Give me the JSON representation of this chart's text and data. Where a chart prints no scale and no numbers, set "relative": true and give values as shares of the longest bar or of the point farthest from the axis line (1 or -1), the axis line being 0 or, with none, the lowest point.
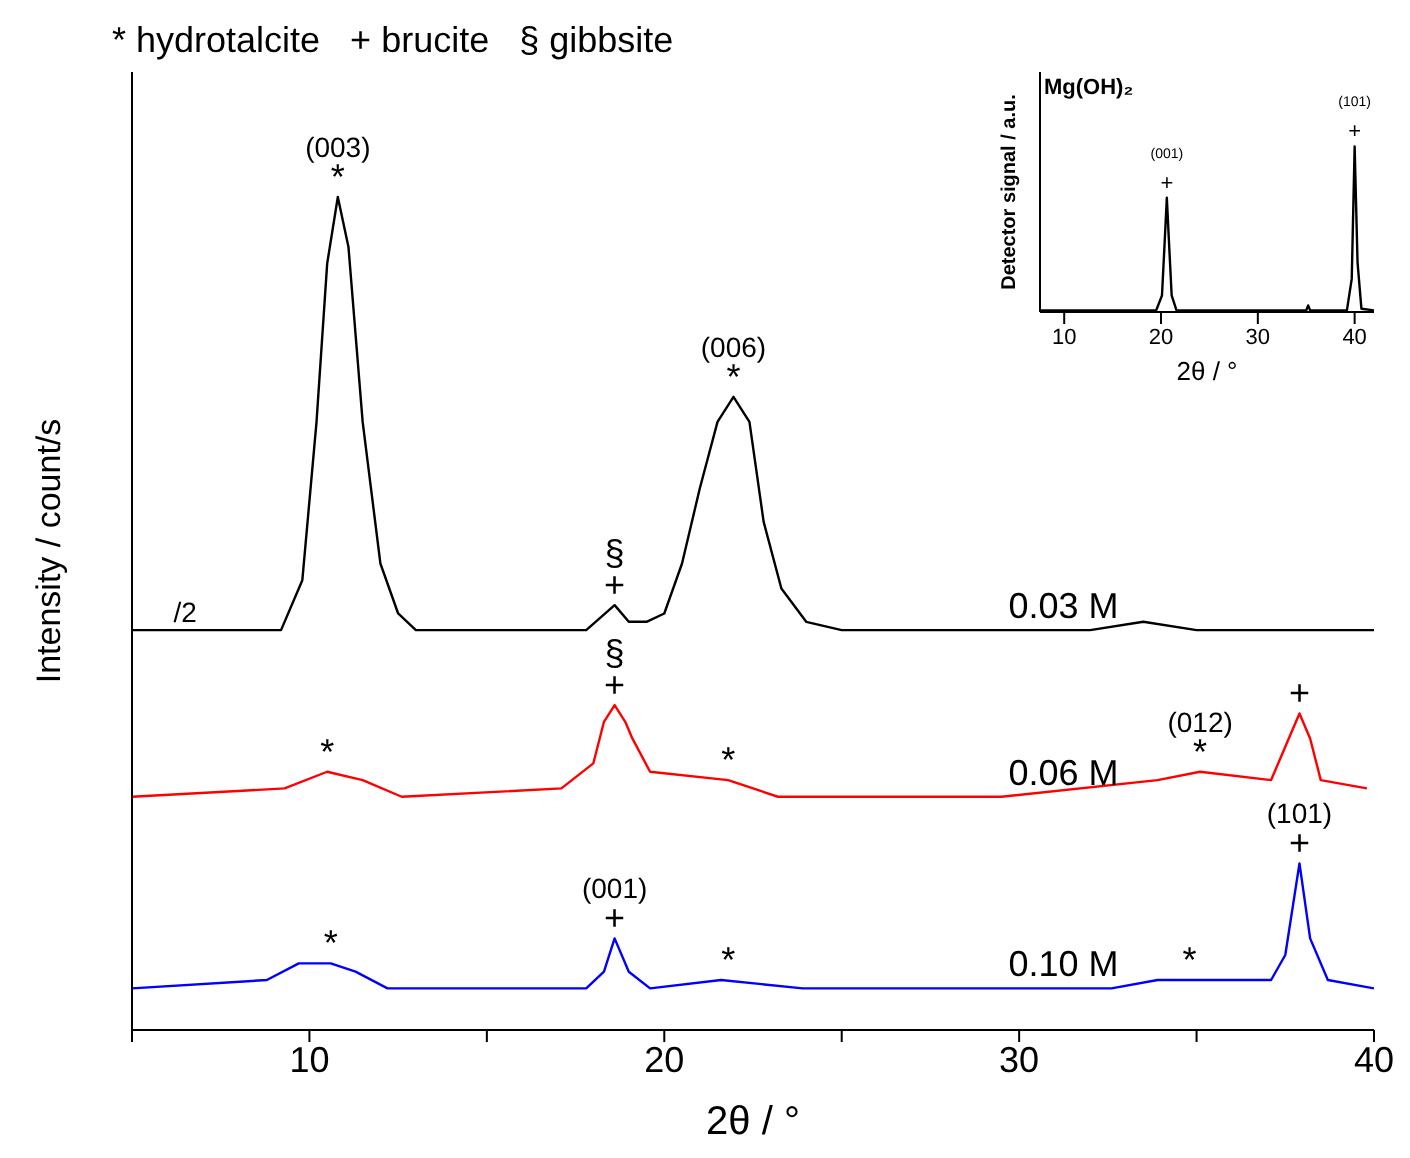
{
  "chart_data": [
    {
      "type": "line",
      "title": "* hydrotalcite   + brucite   § gibbsite",
      "xlabel": "2θ / °",
      "ylabel": "Intensity / count/s",
      "relative": true,
      "grid": false,
      "legend": false,
      "marker": "none",
      "xlim": [
        5,
        40
      ],
      "xticks": [
        {
          "value": 5,
          "label": null
        },
        10,
        {
          "value": 15,
          "label": null
        },
        20,
        {
          "value": 25,
          "label": null
        },
        30,
        {
          "value": 35,
          "label": null
        },
        40
      ],
      "series": [
        {
          "name": "0.03 M",
          "color": "#000000",
          "x": [
            5,
            8,
            9.2,
            9.8,
            10.2,
            10.5,
            10.8,
            11.1,
            11.5,
            12,
            12.5,
            13,
            17.8,
            18.6,
            19,
            19.5,
            20,
            20.5,
            21,
            21.5,
            21.95,
            22.4,
            22.8,
            23.3,
            24,
            25,
            32,
            33.5,
            35,
            40
          ],
          "values": [
            0.48,
            0.48,
            0.48,
            0.54,
            0.73,
            0.92,
            1,
            0.94,
            0.73,
            0.56,
            0.5,
            0.48,
            0.48,
            0.51,
            0.49,
            0.49,
            0.5,
            0.56,
            0.65,
            0.73,
            0.76,
            0.73,
            0.61,
            0.53,
            0.49,
            0.48,
            0.48,
            0.49,
            0.48,
            0.48
          ]
        },
        {
          "name": "0.06 M",
          "color": "#ff0000",
          "x": [
            5,
            9.3,
            10.5,
            11.5,
            12.6,
            17.1,
            18,
            18.3,
            18.6,
            18.9,
            19.1,
            19.6,
            21.8,
            23.2,
            29.5,
            33.9,
            35.1,
            37.1,
            37.5,
            37.9,
            38.2,
            38.5,
            39.8
          ],
          "values": [
            0.28,
            0.29,
            0.31,
            0.3,
            0.28,
            0.29,
            0.32,
            0.37,
            0.39,
            0.37,
            0.35,
            0.31,
            0.3,
            0.28,
            0.28,
            0.3,
            0.31,
            0.3,
            0.34,
            0.38,
            0.35,
            0.3,
            0.29
          ]
        },
        {
          "name": "0.10 M",
          "color": "#0000ff",
          "x": [
            5,
            8.8,
            9.7,
            10.6,
            11.3,
            12.2,
            17.8,
            18.3,
            18.6,
            19,
            19.6,
            21.6,
            23.9,
            32.6,
            33.9,
            34.8,
            37.1,
            37.5,
            37.9,
            38.2,
            38.7,
            40
          ],
          "values": [
            0.05,
            0.06,
            0.08,
            0.08,
            0.07,
            0.05,
            0.05,
            0.07,
            0.11,
            0.07,
            0.05,
            0.06,
            0.05,
            0.05,
            0.06,
            0.06,
            0.06,
            0.09,
            0.2,
            0.11,
            0.06,
            0.05
          ]
        }
      ],
      "annotations": [
        {
          "text": "/2",
          "x": 6.5,
          "y": 0.48
        },
        {
          "text": "*",
          "x": 10.8,
          "y": 1
        },
        {
          "text": "(003)",
          "x": 10.8,
          "y": 1
        },
        {
          "text": "+",
          "x": 18.6,
          "y": 0.51
        },
        {
          "text": "§",
          "x": 18.6,
          "y": 0.51
        },
        {
          "text": "*",
          "x": 21.95,
          "y": 0.76
        },
        {
          "text": "(006)",
          "x": 21.95,
          "y": 0.76
        },
        {
          "text": "*",
          "x": 10.5,
          "y": 0.31
        },
        {
          "text": "+",
          "x": 18.6,
          "y": 0.39
        },
        {
          "text": "§",
          "x": 18.6,
          "y": 0.39
        },
        {
          "text": "*",
          "x": 21.8,
          "y": 0.3
        },
        {
          "text": "*",
          "x": 35.1,
          "y": 0.31
        },
        {
          "text": "(012)",
          "x": 35.1,
          "y": 0.31
        },
        {
          "text": "+",
          "x": 37.9,
          "y": 0.38
        },
        {
          "text": "*",
          "x": 10.6,
          "y": 0.08
        },
        {
          "text": "+",
          "x": 18.6,
          "y": 0.11
        },
        {
          "text": "(001)",
          "x": 18.6,
          "y": 0.11
        },
        {
          "text": "*",
          "x": 21.8,
          "y": 0.06
        },
        {
          "text": "*",
          "x": 34.8,
          "y": 0.06
        },
        {
          "text": "+",
          "x": 37.9,
          "y": 0.2
        },
        {
          "text": "(101)",
          "x": 37.9,
          "y": 0.2
        }
      ]
    },
    {
      "type": "line",
      "title": "Mg(OH)₂",
      "xlabel": "2θ / °",
      "ylabel": "Detector signal / a.u.",
      "relative": true,
      "grid": false,
      "legend": false,
      "marker": "none",
      "xlim": [
        7.5,
        42
      ],
      "xticks": [
        10,
        20,
        30,
        40
      ],
      "series": [
        {
          "color": "#000000",
          "x": [
            7.5,
            19.5,
            20.1,
            20.4,
            20.6,
            20.8,
            21.1,
            21.6,
            35,
            35.2,
            35.4,
            39.2,
            39.7,
            40,
            40.3,
            40.7,
            42
          ],
          "values": [
            0.01,
            0.01,
            0.1,
            0.45,
            0.69,
            0.45,
            0.1,
            0.01,
            0.01,
            0.04,
            0.01,
            0.01,
            0.2,
            1,
            0.3,
            0.02,
            0.01
          ]
        }
      ],
      "annotations": [
        {
          "text": "+",
          "x": 20.6,
          "y": 0.69
        },
        {
          "text": "(001)",
          "x": 20.6,
          "y": 0.69
        },
        {
          "text": "+",
          "x": 40,
          "y": 1
        },
        {
          "text": "(101)",
          "x": 40,
          "y": 1
        }
      ]
    }
  ]
}
